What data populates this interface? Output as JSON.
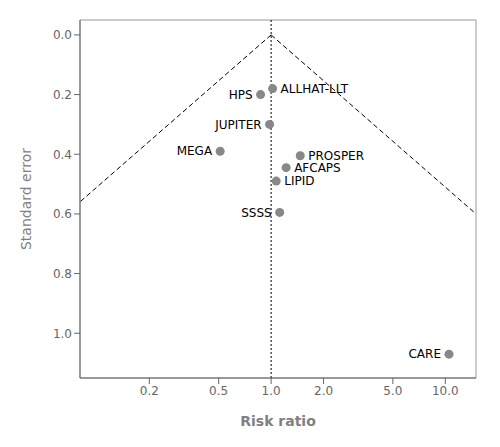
{
  "chart_data": {
    "type": "scatter",
    "x_label": "Risk ratio",
    "y_label": "Standard error",
    "log": "x",
    "xlim": [
      0.08,
      15.0
    ],
    "ylim": [
      1.15,
      -0.05
    ],
    "xticks": [
      0.2,
      0.5,
      {
        "value": 1.0,
        "label": "1.0"
      },
      {
        "value": 2.0,
        "label": "2.0"
      },
      {
        "value": 5.0,
        "label": "5.0"
      },
      {
        "value": 10.0,
        "label": "10.0"
      }
    ],
    "yticks": [
      {
        "value": 0.0,
        "label": "0.0"
      },
      0.2,
      0.4,
      0.6,
      0.8,
      {
        "value": 1.0,
        "label": "1.0"
      }
    ],
    "grid": false,
    "series": [
      {
        "type": "line",
        "color": "#000000",
        "line_style": "dashed",
        "x": [
          1.0,
          0.08
        ],
        "values": [
          0.0,
          0.559648
        ]
      },
      {
        "type": "line",
        "color": "#000000",
        "line_style": "dashed",
        "x": [
          1.0,
          15.0
        ],
        "values": [
          0.0,
          0.600047
        ]
      },
      {
        "type": "line",
        "color": "#000000",
        "line_style": "dotted",
        "x": [
          1.0,
          1.0
        ],
        "values": [
          -0.05,
          1.15
        ]
      },
      {
        "type": "scatter",
        "color": "#888888",
        "marker": "circle",
        "x": [
          0.87,
          1.02,
          0.98,
          0.51,
          1.47,
          1.22,
          1.07,
          1.12,
          10.5
        ],
        "values": [
          0.2,
          0.18,
          0.3,
          0.39,
          0.405,
          0.445,
          0.49,
          0.595,
          1.07
        ],
        "point_labels": [
          "HPS",
          "ALLHAT-LLT",
          "JUPITER",
          "MEGA",
          "PROSPER",
          "AFCAPS",
          "LIPID",
          "SSSS",
          "CARE"
        ]
      }
    ]
  }
}
